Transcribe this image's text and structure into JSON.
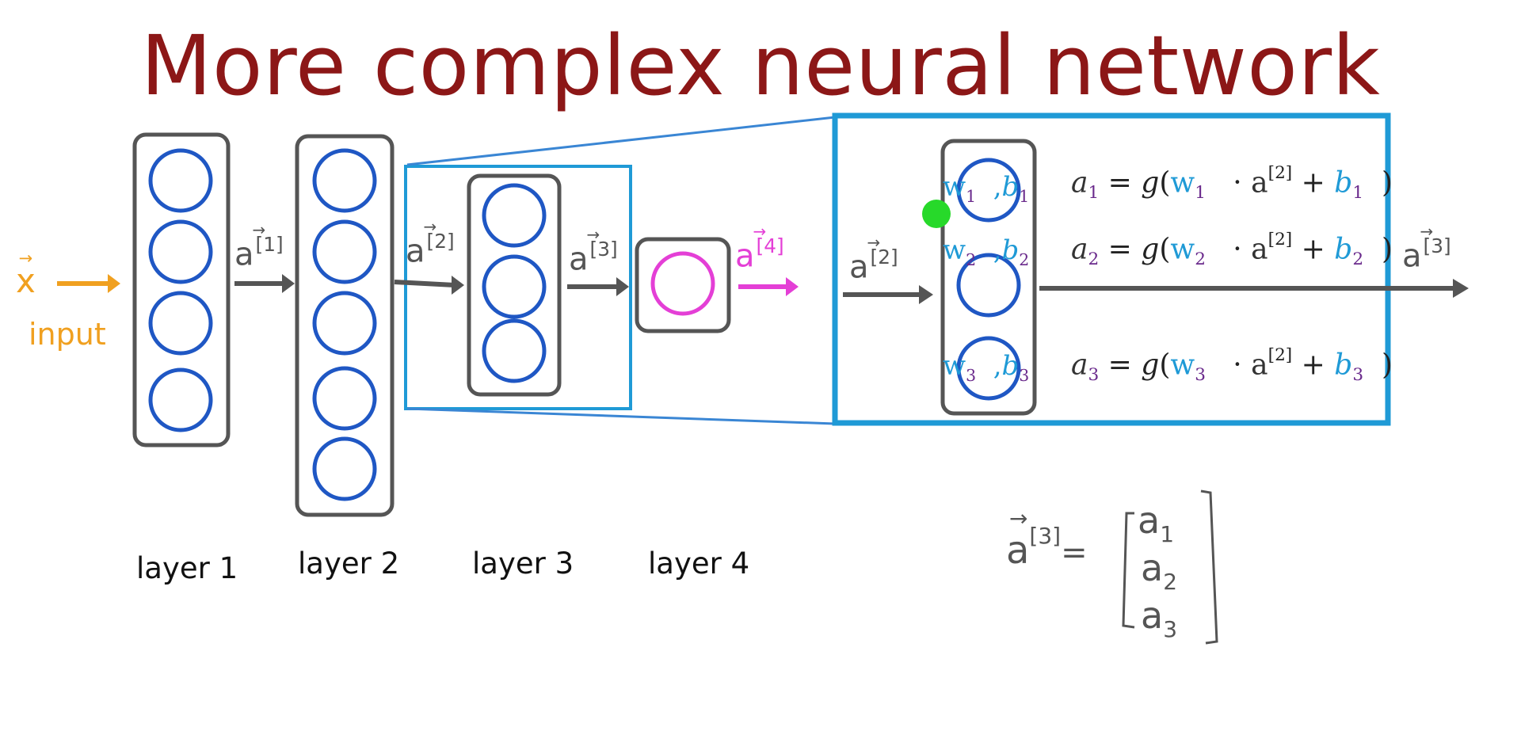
{
  "title": "More complex neural network",
  "input": {
    "vector": "x",
    "label": "input"
  },
  "layers": [
    {
      "label": "layer 1",
      "neurons": 4
    },
    {
      "label": "layer 2",
      "neurons": 5
    },
    {
      "label": "layer 3",
      "neurons": 3
    },
    {
      "label": "layer 4",
      "neurons": 1
    }
  ],
  "activations": [
    {
      "base": "a",
      "superscript": "[1]"
    },
    {
      "base": "a",
      "superscript": "[2]"
    },
    {
      "base": "a",
      "superscript": "[3]"
    },
    {
      "base": "a",
      "superscript": "[4]"
    }
  ],
  "zoom": {
    "input_activation": {
      "base": "a",
      "superscript": "[2]"
    },
    "output_activation": {
      "base": "a",
      "superscript": "[3]"
    },
    "units": [
      {
        "w": "w",
        "w_sub": "1",
        "b": "b",
        "b_sub": "1",
        "a": "a",
        "a_sub": "1",
        "g": "g",
        "prev": "a",
        "prev_sup": "[2]"
      },
      {
        "w": "w",
        "w_sub": "2",
        "b": "b",
        "b_sub": "2",
        "a": "a",
        "a_sub": "2",
        "g": "g",
        "prev": "a",
        "prev_sup": "[2]"
      },
      {
        "w": "w",
        "w_sub": "3",
        "b": "b",
        "b_sub": "3",
        "a": "a",
        "a_sub": "3",
        "g": "g",
        "prev": "a",
        "prev_sup": "[2]"
      }
    ]
  },
  "handwritten": {
    "lhs": "a",
    "lhs_superscript": "[3]",
    "entries": [
      {
        "base": "a",
        "sub": "1"
      },
      {
        "base": "a",
        "sub": "2"
      },
      {
        "base": "a",
        "sub": "3"
      }
    ]
  },
  "colors": {
    "title": "#8c1717",
    "neuron": "#1f57c4",
    "output_neuron": "#e43fd6",
    "highlight_box": "#1f9ad6",
    "arrow": "#555555",
    "input": "#f0a020",
    "cursor_dot": "#27d92a"
  }
}
